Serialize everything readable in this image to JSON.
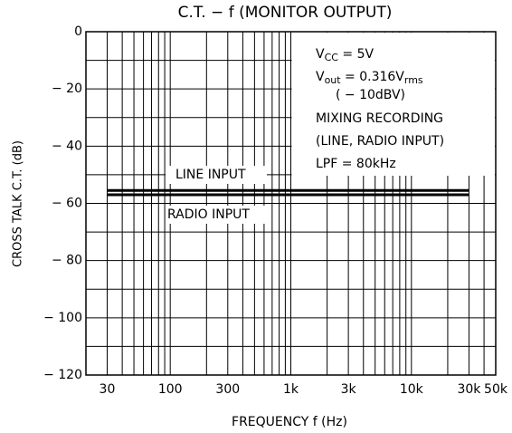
{
  "chart_data": {
    "type": "line",
    "title": "C.T. − f (MONITOR OUTPUT)",
    "xlabel": "FREQUENCY f (Hz)",
    "ylabel": "CROSS TALK C.T. (dB)",
    "xscale": "log",
    "xlim": [
      20,
      50000
    ],
    "ylim": [
      -120,
      0
    ],
    "xticks": [
      30,
      100,
      300,
      {
        "value": 1000,
        "label": "1k"
      },
      {
        "value": 3000,
        "label": "3k"
      },
      {
        "value": 10000,
        "label": "10k"
      },
      {
        "value": 30000,
        "label": "30k"
      },
      {
        "value": 50000,
        "label": "50k"
      }
    ],
    "yticks": [
      0,
      {
        "value": -20,
        "label": "− 20"
      },
      {
        "value": -40,
        "label": "− 40"
      },
      {
        "value": -60,
        "label": "− 60"
      },
      {
        "value": -80,
        "label": "− 80"
      },
      {
        "value": -100,
        "label": "− 100"
      },
      {
        "value": -120,
        "label": "− 120"
      }
    ],
    "xminor": [
      20,
      40,
      50,
      60,
      70,
      80,
      90,
      200,
      400,
      500,
      600,
      700,
      800,
      900,
      2000,
      4000,
      5000,
      6000,
      7000,
      8000,
      9000,
      20000,
      40000
    ],
    "yminor": [
      -10,
      -30,
      -50,
      -70,
      -90,
      -110
    ],
    "grid": true,
    "x": [
      30,
      30000
    ],
    "series": [
      {
        "name": "LINE INPUT",
        "color": "#000000",
        "values": [
          -55.5,
          -55.5
        ]
      },
      {
        "name": "RADIO INPUT",
        "color": "#000000",
        "values": [
          -57,
          -57
        ]
      }
    ],
    "annotations": [
      [
        "V",
        "CC",
        " = 5V"
      ],
      [
        "V",
        "out",
        " = 0.316V",
        "rms"
      ],
      [
        "( − 10dBV)"
      ],
      [
        "MIXING RECORDING"
      ],
      [
        "(LINE, RADIO INPUT)"
      ],
      [
        "LPF = 80kHz"
      ]
    ]
  }
}
